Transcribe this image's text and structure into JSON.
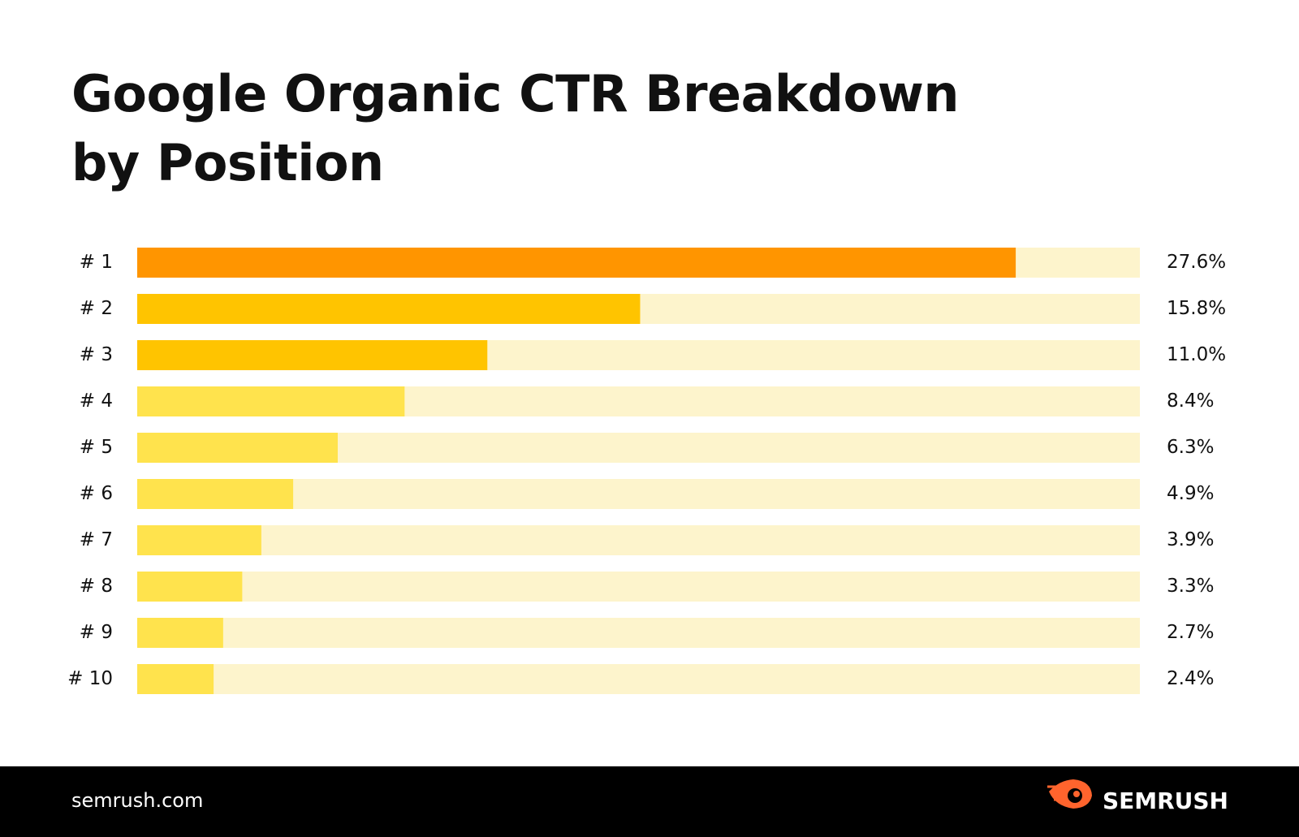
{
  "chart_data": {
    "type": "bar",
    "orientation": "horizontal",
    "title_lines": [
      "Google Organic CTR Breakdown",
      "by Position"
    ],
    "categories": [
      "# 1",
      "# 2",
      "# 3",
      "# 4",
      "# 5",
      "# 6",
      "# 7",
      "# 8",
      "# 9",
      "# 10"
    ],
    "values": [
      27.6,
      15.8,
      11.0,
      8.4,
      6.3,
      4.9,
      3.9,
      3.3,
      2.7,
      2.4
    ],
    "value_labels": [
      "27.6%",
      "15.8%",
      "11.0%",
      "8.4%",
      "6.3%",
      "4.9%",
      "3.9%",
      "3.3%",
      "2.7%",
      "2.4%"
    ],
    "colors": [
      "#ff9500",
      "#ffc400",
      "#ffc400",
      "#ffe34d",
      "#ffe34d",
      "#ffe34d",
      "#ffe34d",
      "#ffe34d",
      "#ffe34d",
      "#ffe34d"
    ],
    "track_color": "#fdf4cc",
    "xlim": [
      0,
      31.5
    ]
  },
  "footer": {
    "url": "semrush.com",
    "brand": "SEMRUSH"
  }
}
